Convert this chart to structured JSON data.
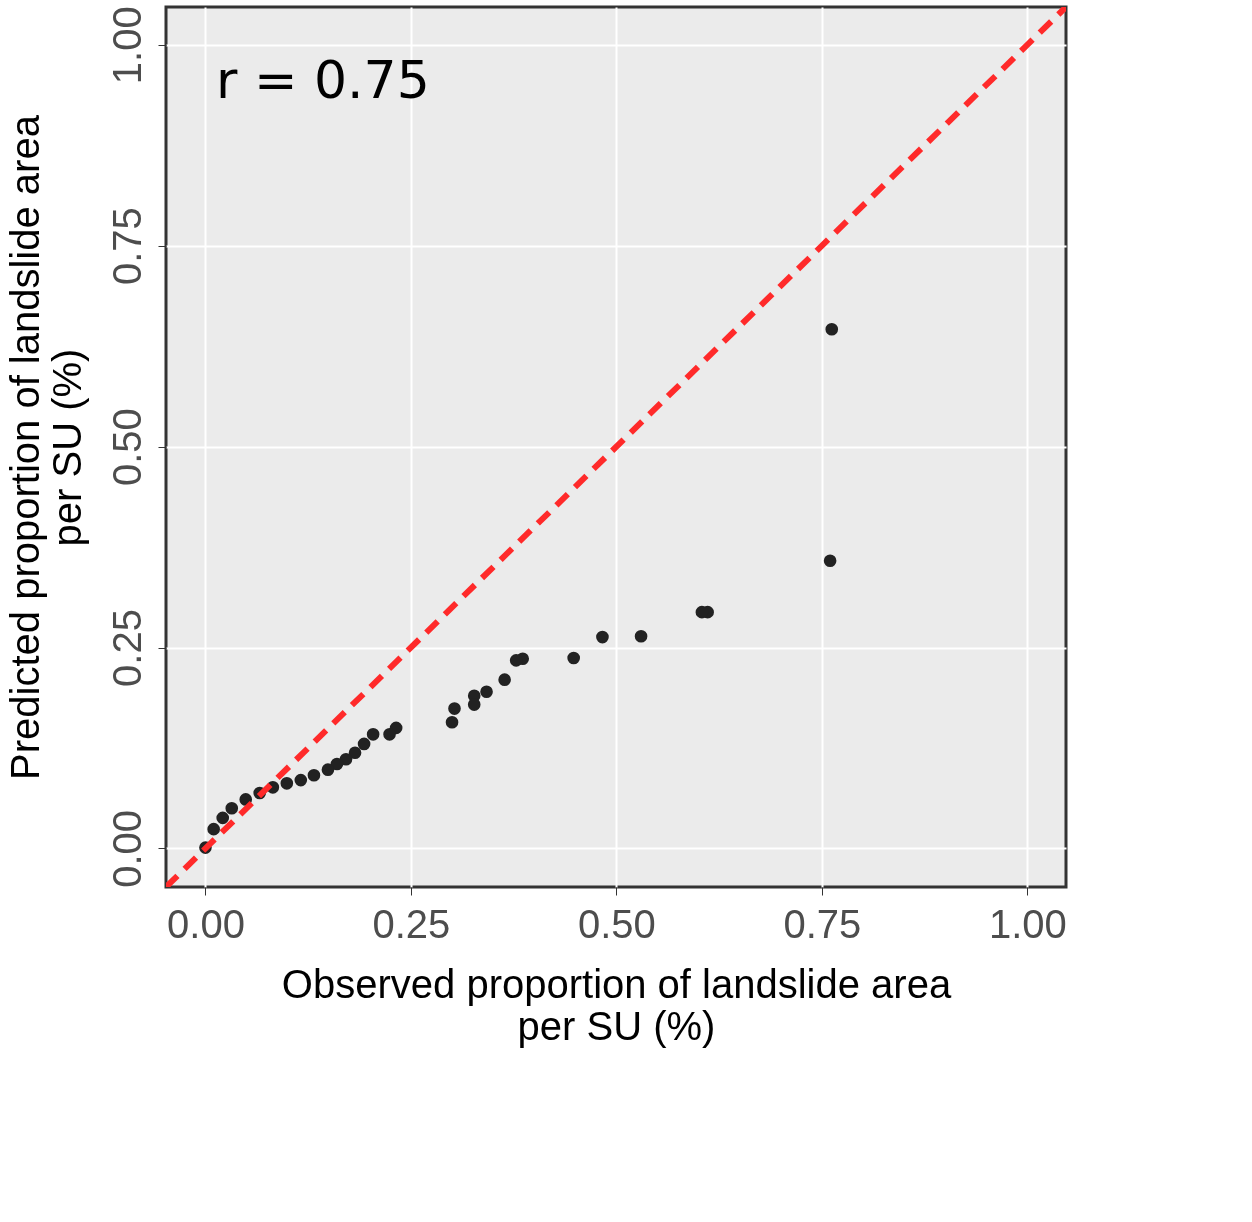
{
  "chart_data": {
    "type": "scatter",
    "xlabel": "Observed proportion of landslide area\nper SU (%)",
    "ylabel": "Predicted proportion of landslide area\nper SU (%)",
    "annotations": [
      "r = 0.75"
    ],
    "xlim": [
      -0.048,
      1.047
    ],
    "ylim": [
      -0.048,
      1.047
    ],
    "xticks": [
      {
        "value": 0,
        "label": "0.00"
      },
      0.25,
      {
        "value": 0.5,
        "label": "0.50"
      },
      0.75,
      {
        "value": 1,
        "label": "1.00"
      }
    ],
    "yticks": [
      {
        "value": 0,
        "label": "0.00"
      },
      0.25,
      {
        "value": 0.5,
        "label": "0.50"
      },
      0.75,
      {
        "value": 1,
        "label": "1.00"
      }
    ],
    "grid": true,
    "marker": "circle",
    "series": [
      {
        "color": "#222222",
        "x": [
          0.762,
          0.76,
          0.611,
          0.604,
          0.53,
          0.483,
          0.448,
          0.386,
          0.378,
          0.364,
          0.342,
          0.327,
          0.327,
          0.303,
          0.3,
          0.232,
          0.224,
          0.204,
          0.193,
          0.182,
          0.171,
          0.16,
          0.149,
          0.132,
          0.116,
          0.099,
          0.082,
          0.066,
          0.049,
          0.032,
          0.021,
          0.01,
          0.0
        ],
        "values": [
          0.646,
          0.358,
          0.294,
          0.294,
          0.264,
          0.263,
          0.237,
          0.236,
          0.234,
          0.21,
          0.195,
          0.19,
          0.179,
          0.174,
          0.157,
          0.15,
          0.142,
          0.142,
          0.13,
          0.119,
          0.111,
          0.105,
          0.098,
          0.091,
          0.085,
          0.081,
          0.076,
          0.069,
          0.061,
          0.05,
          0.038,
          0.024,
          0.001
        ]
      },
      {
        "type": "line",
        "color": "#ff2a2a",
        "line_style": "dashed",
        "marker": "none",
        "x": [
          -0.048,
          1.047
        ],
        "values": [
          -0.048,
          1.047
        ]
      }
    ]
  }
}
